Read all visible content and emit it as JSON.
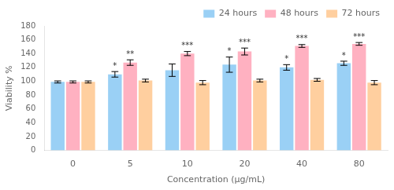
{
  "chart_data": {
    "type": "bar",
    "categories": [
      "0",
      "5",
      "10",
      "20",
      "40",
      "80"
    ],
    "series": [
      {
        "name": "24 hours",
        "values": [
          99,
          110,
          116,
          124,
          120,
          126
        ],
        "errors": [
          1.5,
          4,
          9,
          11,
          4,
          3
        ]
      },
      {
        "name": "48 hours",
        "values": [
          99,
          127,
          140,
          143,
          151,
          154
        ],
        "errors": [
          1.5,
          4,
          3,
          5,
          2,
          2
        ]
      },
      {
        "name": "72 hours",
        "values": [
          99,
          101,
          98,
          101,
          102,
          98
        ],
        "errors": [
          1.5,
          2,
          3,
          2,
          2,
          3
        ]
      }
    ],
    "xlabel": "Concentration (μg/mL)",
    "ylabel": "Viability %",
    "ylim": [
      0,
      180
    ],
    "yticks": [
      0,
      20,
      40,
      60,
      80,
      100,
      120,
      140,
      160,
      180
    ],
    "grid": false,
    "legend": "upper right",
    "annotations": [
      {
        "series": "48 hours",
        "category": "5",
        "text": "**"
      },
      {
        "series": "48 hours",
        "category": "10",
        "text": "***"
      },
      {
        "series": "48 hours",
        "category": "20",
        "text": "***"
      },
      {
        "series": "48 hours",
        "category": "40",
        "text": "***"
      },
      {
        "series": "48 hours",
        "category": "80",
        "text": "***"
      },
      {
        "series": "24 hours",
        "category": "5",
        "text": "*"
      },
      {
        "series": "24 hours",
        "category": "20",
        "text": "*"
      },
      {
        "series": "24 hours",
        "category": "40",
        "text": "*"
      },
      {
        "series": "24 hours",
        "category": "80",
        "text": "*"
      }
    ]
  }
}
